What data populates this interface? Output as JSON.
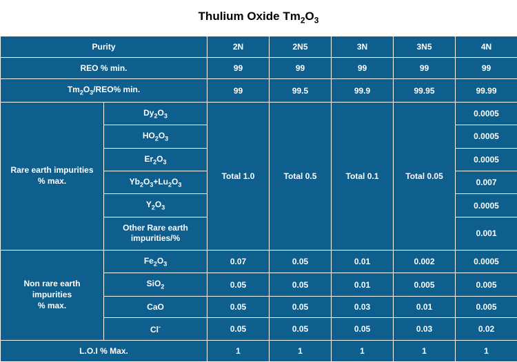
{
  "colors": {
    "cell_bg": "#0f5f8e",
    "cell_border": "#ffffff",
    "cell_text": "#ffffff",
    "page_bg": "#ffffff",
    "title_text": "#000000"
  },
  "title": {
    "plain": "Thulium Oxide  Tm",
    "sub1": "2",
    "mid": "O",
    "sub2": "3"
  },
  "header": {
    "purity": "Purity",
    "cols": [
      "2N",
      "2N5",
      "3N",
      "3N5",
      "4N"
    ]
  },
  "reo": {
    "label": "REO % min.",
    "vals": [
      "99",
      "99",
      "99",
      "99",
      "99"
    ]
  },
  "tmreo": {
    "label_a": "Tm",
    "label_b": "O",
    "label_c": "/REO% min.",
    "sub1": "2",
    "sub2": "3",
    "vals": [
      "99",
      "99.5",
      "99.9",
      "99.95",
      "99.99"
    ]
  },
  "re_imp": {
    "group_label_a": "Rare earth impurities",
    "group_label_b": "% max.",
    "rows": [
      {
        "f": "Dy",
        "s1": "2",
        "m": "O",
        "s2": "3",
        "v4n": "0.0005"
      },
      {
        "f": "HO",
        "s1": "2",
        "m": "O",
        "s2": "3",
        "v4n": "0.0005"
      },
      {
        "f": "Er",
        "s1": "2",
        "m": "O",
        "s2": "3",
        "v4n": "0.0005"
      },
      {
        "f": "Yb",
        "s1": "2",
        "m": "O",
        "s2": "3",
        "plus": "+Lu",
        "s3": "2",
        "m2": "O",
        "s4": "3",
        "v4n": "0.007"
      },
      {
        "f": "Y",
        "s1": "2",
        "m": "O",
        "s2": "3",
        "v4n": "0.0005"
      },
      {
        "other_a": "Other Rare earth",
        "other_b": "impurities/%",
        "v4n": "0.001"
      }
    ],
    "totals": [
      "Total 1.0",
      "Total 0.5",
      "Total 0.1",
      "Total 0.05"
    ]
  },
  "nre_imp": {
    "group_label_a": "Non rare earth impurities",
    "group_label_b": "% max.",
    "rows": [
      {
        "f": "Fe",
        "s1": "2",
        "m": "O",
        "s2": "3",
        "vals": [
          "0.07",
          "0.05",
          "0.01",
          "0.002",
          "0.0005"
        ]
      },
      {
        "f": "SiO",
        "s1": "2",
        "vals": [
          "0.05",
          "0.05",
          "0.01",
          "0.005",
          "0.005"
        ]
      },
      {
        "plain": "CaO",
        "vals": [
          "0.05",
          "0.05",
          "0.03",
          "0.01",
          "0.005"
        ]
      },
      {
        "f": "Cl",
        "sup": "-",
        "vals": [
          "0.05",
          "0.05",
          "0.05",
          "0.03",
          "0.02"
        ]
      }
    ]
  },
  "loi": {
    "label": "L.O.I % Max.",
    "vals": [
      "1",
      "1",
      "1",
      "1",
      "1"
    ]
  }
}
